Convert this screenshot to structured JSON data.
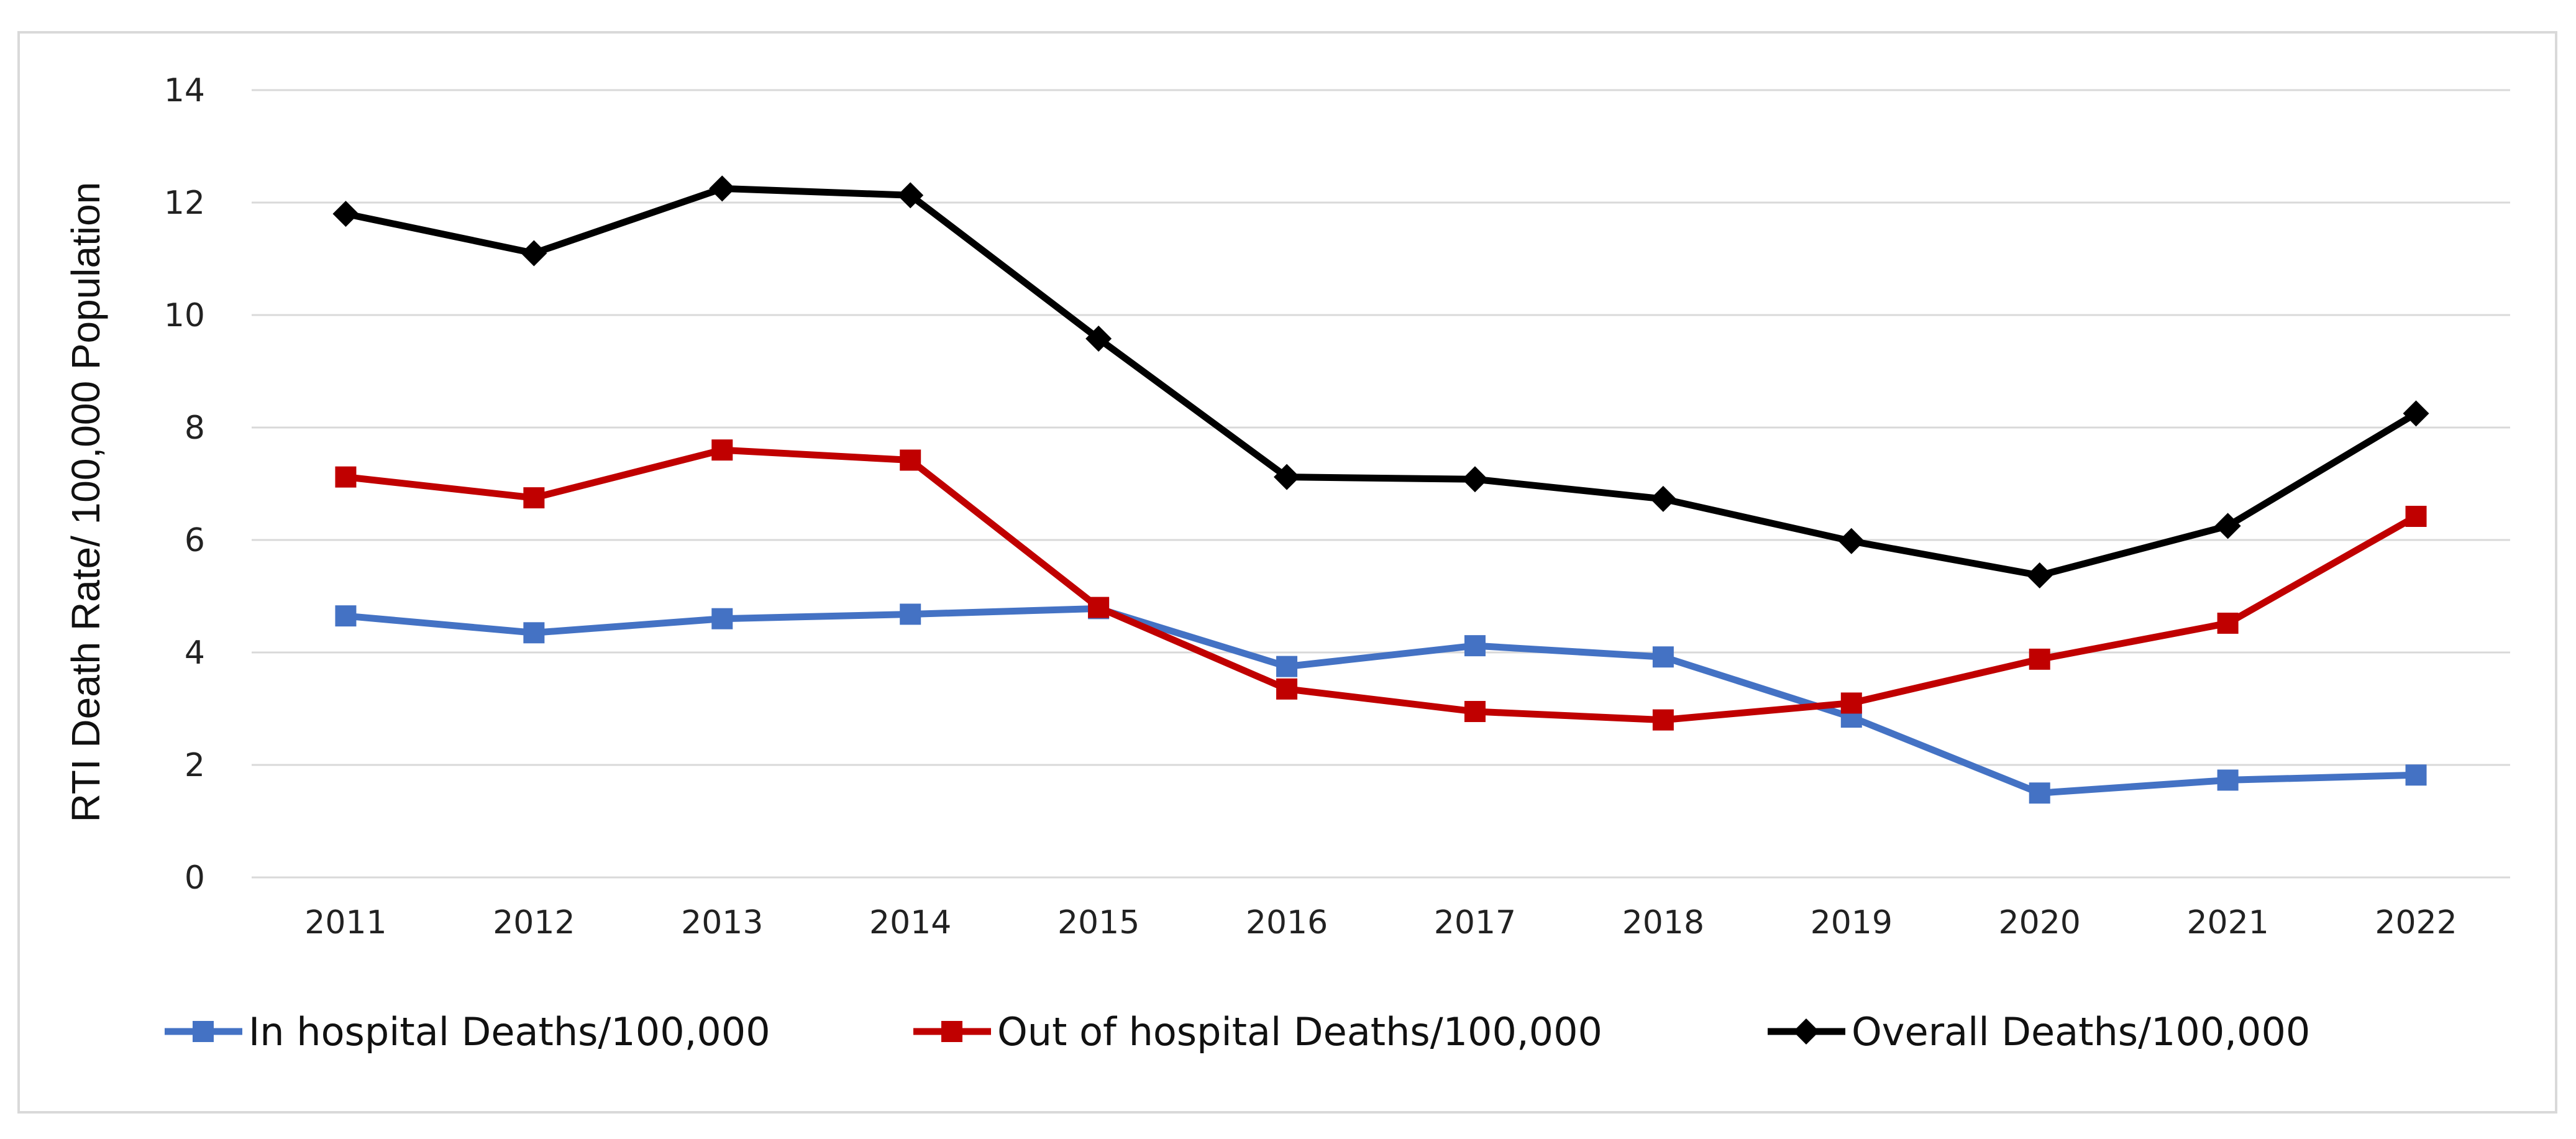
{
  "chart_data": {
    "type": "line",
    "title": "",
    "xlabel": "",
    "ylabel": "RTI Death Rate/ 100,000 Population",
    "ylim": [
      0,
      14
    ],
    "yticks": [
      "0",
      "2",
      "4",
      "6",
      "8",
      "10",
      "12",
      "14"
    ],
    "categories": [
      "2011",
      "2012",
      "2013",
      "2014",
      "2015",
      "2016",
      "2017",
      "2018",
      "2019",
      "2020",
      "2021",
      "2022"
    ],
    "grid": true,
    "legend_position": "bottom",
    "series": [
      {
        "name": "In hospital Deaths/100,000",
        "color": "#4472c4",
        "marker": "square",
        "values": [
          4.65,
          4.35,
          4.6,
          4.68,
          4.78,
          3.75,
          4.12,
          3.92,
          2.85,
          1.5,
          1.73,
          1.82
        ]
      },
      {
        "name": "Out of hospital Deaths/100,000",
        "color": "#c00000",
        "marker": "square",
        "values": [
          7.12,
          6.75,
          7.6,
          7.42,
          4.8,
          3.35,
          2.95,
          2.8,
          3.1,
          3.88,
          4.52,
          6.42
        ]
      },
      {
        "name": "Overall Deaths/100,000",
        "color": "#000000",
        "marker": "diamond",
        "values": [
          11.8,
          11.1,
          12.25,
          12.13,
          9.58,
          7.12,
          7.08,
          6.73,
          5.98,
          5.37,
          6.25,
          8.25
        ]
      }
    ]
  }
}
